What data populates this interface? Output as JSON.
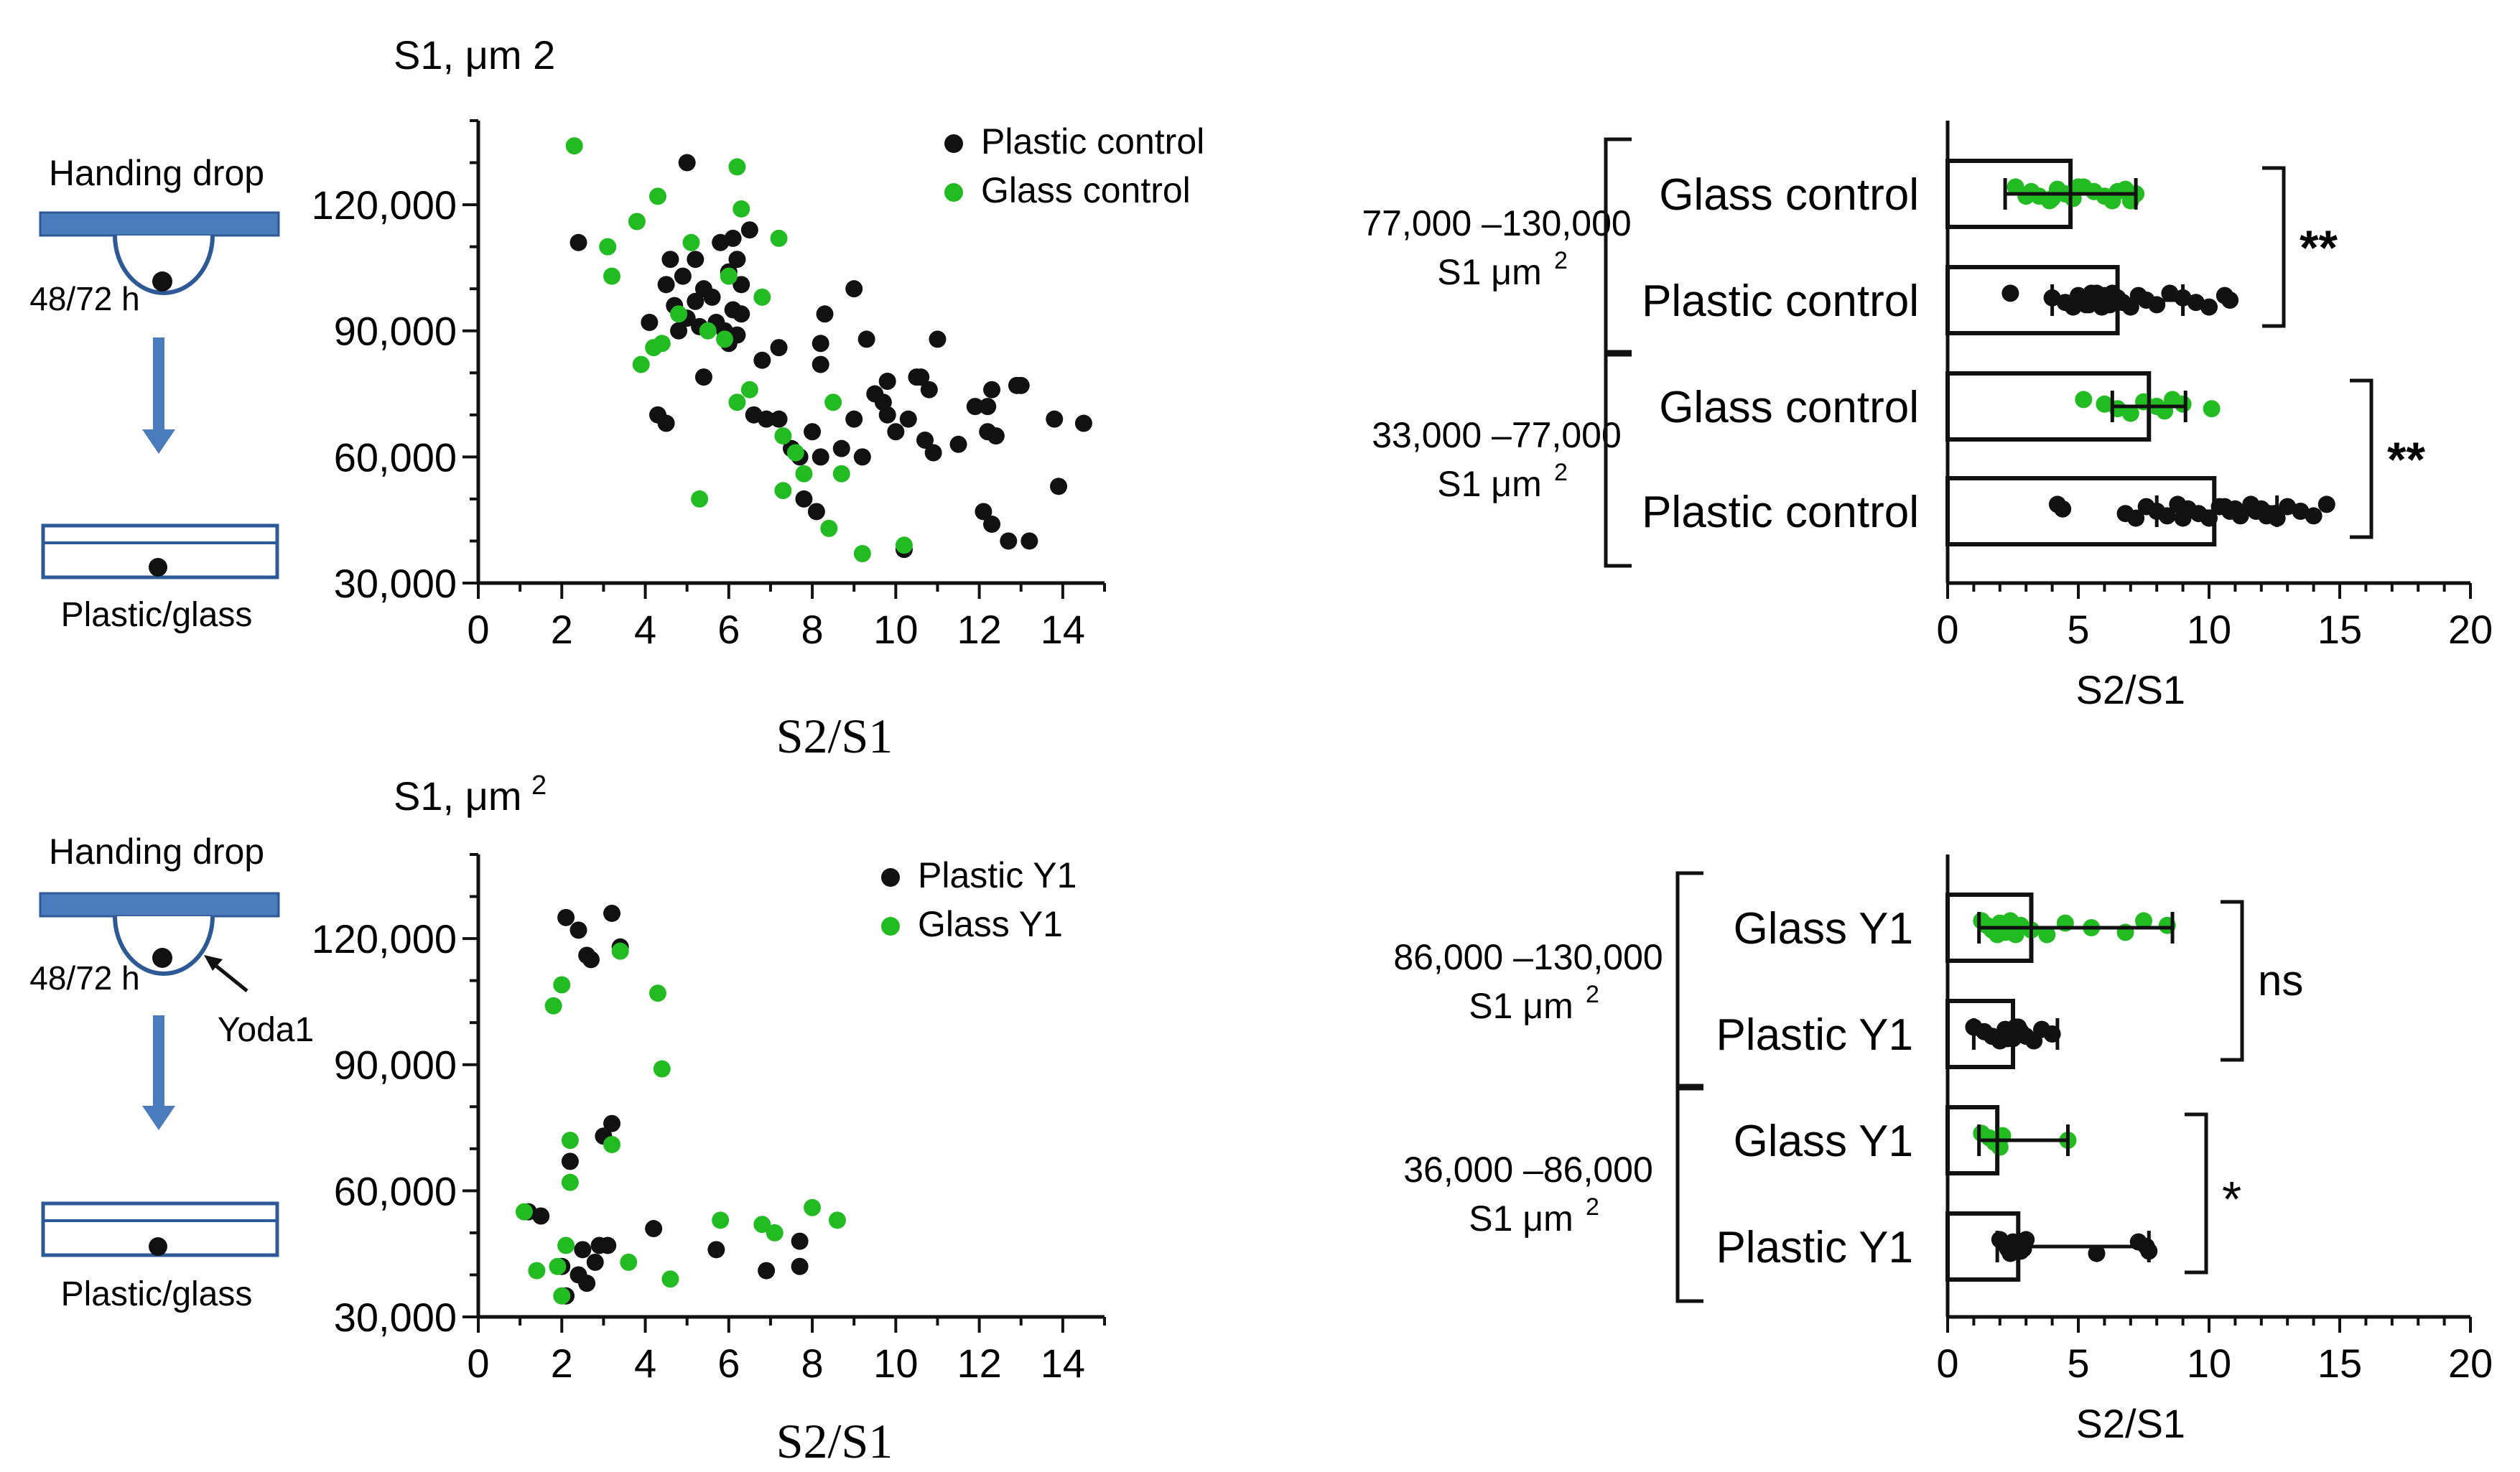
{
  "colors": {
    "black_points": "#111111",
    "green_points": "#22bb22",
    "schematic": "#4a7bbd"
  },
  "schematic_top": {
    "title": "Handing drop",
    "time": "48/72 h",
    "bottom_label": "Plastic/glass"
  },
  "schematic_bottom": {
    "title": "Handing drop",
    "time": "48/72 h",
    "agent": "Yoda1",
    "bottom_label": "Plastic/glass"
  },
  "chart_data": [
    {
      "id": "scatter_control",
      "type": "scatter",
      "ylabel": "S1, μm 2",
      "xlabel": "S2/S1",
      "xlim": [
        0,
        15
      ],
      "ylim": [
        30000,
        140000
      ],
      "xticks": [
        "0",
        "2",
        "4",
        "6",
        "8",
        "10",
        "12",
        "14"
      ],
      "yticks": [
        "30,000",
        "60,000",
        "90,000",
        "120,000"
      ],
      "series": [
        {
          "name": "Plastic control",
          "color": "#111111",
          "points": [
            [
              2.4,
              111000
            ],
            [
              4.1,
              92000
            ],
            [
              4.3,
              70000
            ],
            [
              4.5,
              68000
            ],
            [
              4.5,
              101000
            ],
            [
              4.6,
              107000
            ],
            [
              4.7,
              96000
            ],
            [
              4.8,
              90000
            ],
            [
              4.9,
              103000
            ],
            [
              5.0,
              130000
            ],
            [
              5.0,
              93000
            ],
            [
              5.2,
              107000
            ],
            [
              5.2,
              97000
            ],
            [
              5.3,
              91000
            ],
            [
              5.4,
              100000
            ],
            [
              5.4,
              79000
            ],
            [
              5.6,
              98000
            ],
            [
              5.7,
              92000
            ],
            [
              5.8,
              111000
            ],
            [
              5.9,
              90000
            ],
            [
              6.0,
              87000
            ],
            [
              6.0,
              104000
            ],
            [
              6.1,
              95000
            ],
            [
              6.1,
              112000
            ],
            [
              6.2,
              107000
            ],
            [
              6.2,
              89000
            ],
            [
              6.3,
              94000
            ],
            [
              6.3,
              101000
            ],
            [
              6.5,
              114000
            ],
            [
              6.6,
              70000
            ],
            [
              6.8,
              83000
            ],
            [
              6.9,
              69000
            ],
            [
              7.2,
              86000
            ],
            [
              7.2,
              69000
            ],
            [
              7.5,
              62000
            ],
            [
              7.7,
              60000
            ],
            [
              7.8,
              50000
            ],
            [
              8.0,
              66000
            ],
            [
              8.1,
              47000
            ],
            [
              8.2,
              60000
            ],
            [
              8.2,
              82000
            ],
            [
              8.2,
              87000
            ],
            [
              8.3,
              94000
            ],
            [
              8.7,
              62000
            ],
            [
              9.0,
              100000
            ],
            [
              9.0,
              69000
            ],
            [
              9.2,
              60000
            ],
            [
              9.3,
              88000
            ],
            [
              9.5,
              75000
            ],
            [
              9.7,
              73000
            ],
            [
              9.8,
              70000
            ],
            [
              9.8,
              78000
            ],
            [
              10.0,
              66000
            ],
            [
              10.2,
              38000
            ],
            [
              10.3,
              69000
            ],
            [
              10.5,
              79000
            ],
            [
              10.6,
              79000
            ],
            [
              10.7,
              64000
            ],
            [
              10.8,
              76000
            ],
            [
              10.9,
              61000
            ],
            [
              11.0,
              88000
            ],
            [
              11.5,
              63000
            ],
            [
              11.9,
              72000
            ],
            [
              12.1,
              47000
            ],
            [
              12.2,
              72000
            ],
            [
              12.2,
              66000
            ],
            [
              12.3,
              76000
            ],
            [
              12.3,
              44000
            ],
            [
              12.4,
              65000
            ],
            [
              12.7,
              40000
            ],
            [
              12.9,
              77000
            ],
            [
              13.0,
              77000
            ],
            [
              13.2,
              40000
            ],
            [
              13.8,
              69000
            ],
            [
              13.9,
              53000
            ],
            [
              14.5,
              68000
            ]
          ]
        },
        {
          "name": "Glass control",
          "color": "#22bb22",
          "points": [
            [
              2.3,
              134000
            ],
            [
              3.1,
              110000
            ],
            [
              3.2,
              103000
            ],
            [
              3.8,
              116000
            ],
            [
              3.9,
              82000
            ],
            [
              4.2,
              86000
            ],
            [
              4.3,
              122000
            ],
            [
              4.4,
              87000
            ],
            [
              4.8,
              94000
            ],
            [
              5.1,
              111000
            ],
            [
              5.3,
              50000
            ],
            [
              5.5,
              90000
            ],
            [
              5.9,
              88000
            ],
            [
              6.0,
              103000
            ],
            [
              6.2,
              73000
            ],
            [
              6.2,
              129000
            ],
            [
              6.3,
              119000
            ],
            [
              6.5,
              76000
            ],
            [
              6.8,
              98000
            ],
            [
              7.2,
              112000
            ],
            [
              7.3,
              52000
            ],
            [
              7.3,
              65000
            ],
            [
              7.6,
              61000
            ],
            [
              7.8,
              56000
            ],
            [
              8.4,
              43000
            ],
            [
              8.5,
              73000
            ],
            [
              8.7,
              56000
            ],
            [
              9.2,
              37000
            ],
            [
              10.2,
              39000
            ]
          ]
        }
      ]
    },
    {
      "id": "bar_control",
      "type": "bar",
      "orientation": "horizontal",
      "xlabel": "S2/S1",
      "xlim": [
        0,
        20
      ],
      "xticks": [
        "0",
        "5",
        "10",
        "15",
        "20"
      ],
      "categories": [
        "Glass control",
        "Plastic control",
        "Glass control",
        "Plastic control"
      ],
      "groups": [
        {
          "range": "77,000 –130,000",
          "unit": "S1 μm",
          "sup": "2",
          "significance": "**"
        },
        {
          "range": "33,000 –77,000",
          "unit": "S1 μm",
          "sup": "2",
          "significance": "**"
        }
      ],
      "series": [
        {
          "name": "Glass control (77,000–130,000)",
          "color": "#22bb22",
          "mean": 4.7,
          "err": [
            2.2,
            7.2
          ],
          "points": [
            2.6,
            3.2,
            3.5,
            3.9,
            4.2,
            4.5,
            4.8,
            5.2,
            5.6,
            6.0,
            6.3,
            6.8,
            7.2,
            4.0,
            5.0,
            6.5,
            3.0,
            7.0
          ]
        },
        {
          "name": "Plastic control (77,000–130,000)",
          "color": "#111111",
          "mean": 6.5,
          "err": [
            4.0,
            9.0
          ],
          "points": [
            2.4,
            4.0,
            4.5,
            4.8,
            5.0,
            5.2,
            5.4,
            5.5,
            5.6,
            5.8,
            5.9,
            6.0,
            6.1,
            6.2,
            6.3,
            6.5,
            6.7,
            7.0,
            7.3,
            7.6,
            8.0,
            8.5,
            9.0,
            9.5,
            10.0,
            10.6,
            10.8,
            5.3,
            5.7,
            6.4
          ]
        },
        {
          "name": "Glass control (33,000–77,000)",
          "color": "#22bb22",
          "mean": 7.7,
          "err": [
            6.3,
            9.1
          ],
          "points": [
            5.2,
            6.0,
            6.5,
            7.0,
            7.5,
            8.0,
            8.3,
            8.6,
            9.0,
            10.1
          ]
        },
        {
          "name": "Plastic control (33,000–77,000)",
          "color": "#111111",
          "mean": 10.2,
          "err": [
            8.0,
            12.6
          ],
          "points": [
            4.2,
            4.4,
            6.8,
            7.2,
            7.6,
            8.0,
            8.4,
            8.8,
            9.2,
            9.6,
            10.0,
            10.4,
            10.8,
            11.2,
            11.6,
            12.0,
            12.3,
            12.6,
            13.0,
            13.5,
            14.0,
            14.5,
            11.0,
            12.5,
            9.0,
            10.6,
            11.8,
            12.2
          ]
        }
      ]
    },
    {
      "id": "scatter_y1",
      "type": "scatter",
      "ylabel": "S1, μm",
      "ylabel_sup": "2",
      "xlabel": "S2/S1",
      "xlim": [
        0,
        15
      ],
      "ylim": [
        30000,
        140000
      ],
      "xticks": [
        "0",
        "2",
        "4",
        "6",
        "8",
        "10",
        "12",
        "14"
      ],
      "yticks": [
        "30,000",
        "60,000",
        "90,000",
        "120,000"
      ],
      "series": [
        {
          "name": "Plastic Y1",
          "color": "#111111",
          "points": [
            [
              1.2,
              55000
            ],
            [
              1.5,
              54000
            ],
            [
              2.0,
              42000
            ],
            [
              2.1,
              125000
            ],
            [
              2.1,
              35000
            ],
            [
              2.2,
              67000
            ],
            [
              2.4,
              122000
            ],
            [
              2.4,
              40000
            ],
            [
              2.5,
              46000
            ],
            [
              2.6,
              116000
            ],
            [
              2.6,
              38000
            ],
            [
              2.7,
              115000
            ],
            [
              2.8,
              43000
            ],
            [
              2.9,
              47000
            ],
            [
              3.0,
              73000
            ],
            [
              3.1,
              47000
            ],
            [
              3.2,
              126000
            ],
            [
              3.2,
              76000
            ],
            [
              3.4,
              118000
            ],
            [
              4.2,
              51000
            ],
            [
              5.7,
              46000
            ],
            [
              6.9,
              41000
            ],
            [
              7.7,
              48000
            ],
            [
              7.7,
              42000
            ]
          ]
        },
        {
          "name": "Glass Y1",
          "color": "#22bb22",
          "points": [
            [
              1.1,
              55000
            ],
            [
              1.4,
              41000
            ],
            [
              1.8,
              104000
            ],
            [
              1.9,
              42000
            ],
            [
              2.0,
              35000
            ],
            [
              2.0,
              109000
            ],
            [
              2.1,
              47000
            ],
            [
              2.2,
              72000
            ],
            [
              2.2,
              62000
            ],
            [
              3.2,
              71000
            ],
            [
              3.4,
              117000
            ],
            [
              3.6,
              43000
            ],
            [
              4.3,
              107000
            ],
            [
              4.4,
              89000
            ],
            [
              4.6,
              39000
            ],
            [
              5.8,
              53000
            ],
            [
              6.8,
              52000
            ],
            [
              7.1,
              50000
            ],
            [
              8.0,
              56000
            ],
            [
              8.6,
              53000
            ]
          ]
        }
      ]
    },
    {
      "id": "bar_y1",
      "type": "bar",
      "orientation": "horizontal",
      "xlabel": "S2/S1",
      "xlim": [
        0,
        20
      ],
      "xticks": [
        "0",
        "5",
        "10",
        "15",
        "20"
      ],
      "categories": [
        "Glass Y1",
        "Plastic Y1",
        "Glass Y1",
        "Plastic Y1"
      ],
      "groups": [
        {
          "range": "86,000 –130,000",
          "unit": "S1 μm",
          "sup": "2",
          "significance": "ns"
        },
        {
          "range": "36,000 –86,000",
          "unit": "S1 μm",
          "sup": "2",
          "significance": "*"
        }
      ],
      "series": [
        {
          "name": "Glass Y1 (86,000–130,000)",
          "color": "#22bb22",
          "mean": 3.2,
          "err": [
            1.2,
            8.6
          ],
          "points": [
            1.3,
            1.5,
            1.7,
            1.9,
            2.0,
            2.1,
            2.2,
            2.4,
            2.8,
            3.2,
            3.8,
            4.5,
            5.5,
            6.8,
            7.5,
            8.4,
            1.8,
            2.6
          ]
        },
        {
          "name": "Plastic Y1 (86,000–130,000)",
          "color": "#111111",
          "mean": 2.5,
          "err": [
            1.0,
            4.2
          ],
          "points": [
            1.0,
            1.4,
            1.7,
            2.0,
            2.2,
            2.4,
            2.5,
            2.6,
            2.8,
            3.0,
            3.3,
            3.6,
            4.0,
            2.3,
            2.7
          ]
        },
        {
          "name": "Glass Y1 (36,000–86,000)",
          "color": "#22bb22",
          "mean": 1.9,
          "err": [
            1.2,
            4.6
          ],
          "points": [
            1.3,
            1.6,
            1.8,
            2.0,
            2.1,
            4.6
          ]
        },
        {
          "name": "Plastic Y1 (36,000–86,000)",
          "color": "#111111",
          "mean": 2.7,
          "err": [
            1.9,
            7.7
          ],
          "points": [
            2.0,
            2.2,
            2.3,
            2.4,
            2.5,
            2.6,
            2.8,
            3.0,
            2.2,
            2.9,
            5.7,
            7.3,
            7.6,
            7.7
          ]
        }
      ]
    }
  ]
}
